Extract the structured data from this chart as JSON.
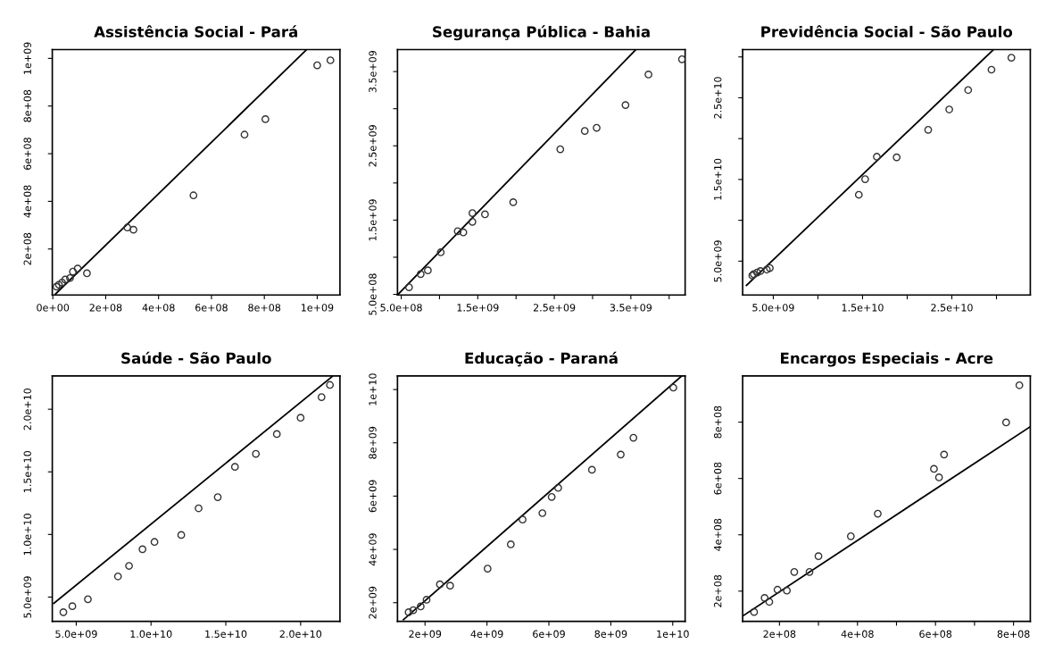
{
  "chart_data": [
    {
      "type": "scatter",
      "title": "Assistência Social - Pará",
      "xlim": [
        -2000000.0,
        1086000000.0
      ],
      "ylim": [
        7000000.0,
        1037000000.0
      ],
      "xticks": [
        {
          "value": 0,
          "label": "0e+00"
        },
        {
          "value": 200000000.0,
          "label": "2e+08"
        },
        {
          "value": 400000000.0,
          "label": "4e+08"
        },
        {
          "value": 600000000.0,
          "label": "6e+08"
        },
        {
          "value": 800000000.0,
          "label": "8e+08"
        },
        {
          "value": 1000000000.0,
          "label": "1e+09"
        }
      ],
      "yticks": [
        {
          "value": 200000000.0,
          "label": "2e+08"
        },
        {
          "value": 400000000.0,
          "label": "4e+08"
        },
        {
          "value": 600000000.0,
          "label": "6e+08"
        },
        {
          "value": 800000000.0,
          "label": "8e+08"
        },
        {
          "value": 1000000000.0,
          "label": "1e+09"
        }
      ],
      "series": [
        {
          "marker": "circle",
          "color": "#333333",
          "x": [
            1000000000.0,
            1050000000.0,
            804000000.0,
            725000000.0,
            532000000.0,
            305000000.0,
            282000000.0,
            129000000.0,
            94000000.0,
            76000000.0,
            65000000.0,
            47000000.0,
            35000000.0,
            23000000.0,
            14000000.0
          ],
          "values": [
            971000000.0,
            992000000.0,
            745000000.0,
            680000000.0,
            425000000.0,
            281000000.0,
            290000000.0,
            98000000.0,
            118000000.0,
            105000000.0,
            78000000.0,
            72000000.0,
            59000000.0,
            50000000.0,
            42000000.0
          ]
        },
        {
          "type": "line",
          "color": "#000000",
          "x": [
            10000000.0,
            960000000.0
          ],
          "values": [
            10800000.0,
            1037000000.0
          ]
        }
      ]
    },
    {
      "type": "scatter",
      "title": "Segurança Pública - Bahia",
      "xlim": [
        451000000.0,
        4209000000.0
      ],
      "ylim": [
        492000000.0,
        3796000000.0
      ],
      "xticks": [
        {
          "value": 500000000.0,
          "label": "5.0e+08"
        },
        {
          "value": 1000000000.0,
          "label": null
        },
        {
          "value": 1500000000.0,
          "label": "1.5e+09"
        },
        {
          "value": 2000000000.0,
          "label": null
        },
        {
          "value": 2500000000.0,
          "label": "2.5e+09"
        },
        {
          "value": 3000000000.0,
          "label": null
        },
        {
          "value": 3500000000.0,
          "label": "3.5e+09"
        },
        {
          "value": 4000000000.0,
          "label": null
        }
      ],
      "yticks": [
        {
          "value": 500000000.0,
          "label": "5.0e+08"
        },
        {
          "value": 1000000000.0,
          "label": null
        },
        {
          "value": 1500000000.0,
          "label": "1.5e+09"
        },
        {
          "value": 2000000000.0,
          "label": null
        },
        {
          "value": 2500000000.0,
          "label": "2.5e+09"
        },
        {
          "value": 3000000000.0,
          "label": null
        },
        {
          "value": 3500000000.0,
          "label": "3.5e+09"
        }
      ],
      "series": [
        {
          "marker": "circle",
          "color": "#333333",
          "x": [
            4168000000.0,
            3730000000.0,
            3430000000.0,
            3053000000.0,
            2898000000.0,
            2578000000.0,
            1963000000.0,
            1594000000.0,
            1430000000.0,
            1430000000.0,
            1311000000.0,
            1238000000.0,
            1016000000.0,
            848000000.0,
            754000000.0,
            602000000.0
          ],
          "values": [
            3666000000.0,
            3460000000.0,
            3049000000.0,
            2743000000.0,
            2701000000.0,
            2454000000.0,
            1741000000.0,
            1578000000.0,
            1594000000.0,
            1477000000.0,
            1334000000.0,
            1351000000.0,
            1066000000.0,
            823000000.0,
            773000000.0,
            596000000.0
          ]
        },
        {
          "type": "line",
          "color": "#000000",
          "x": [
            460000000.0,
            3560000000.0
          ],
          "values": [
            502000000.0,
            3790000000.0
          ]
        }
      ]
    },
    {
      "type": "scatter",
      "title": "Previdência Social - São Paulo",
      "xlim": [
        1570000000.0,
        33790000000.0
      ],
      "ylim": [
        860000000.0,
        30900000000.0
      ],
      "xticks": [
        {
          "value": 5000000000.0,
          "label": "5.0e+09"
        },
        {
          "value": 10000000000.0,
          "label": null
        },
        {
          "value": 15000000000.0,
          "label": "1.5e+10"
        },
        {
          "value": 20000000000.0,
          "label": null
        },
        {
          "value": 25000000000.0,
          "label": "2.5e+10"
        },
        {
          "value": 30000000000.0,
          "label": null
        }
      ],
      "yticks": [
        {
          "value": 5000000000.0,
          "label": "5.0e+09"
        },
        {
          "value": 10000000000.0,
          "label": null
        },
        {
          "value": 15000000000.0,
          "label": "1.5e+10"
        },
        {
          "value": 20000000000.0,
          "label": null
        },
        {
          "value": 25000000000.0,
          "label": "2.5e+10"
        },
        {
          "value": 30000000000.0,
          "label": null
        }
      ],
      "series": [
        {
          "marker": "circle",
          "color": "#333333",
          "x": [
            31670000000.0,
            29440000000.0,
            26830000000.0,
            24710000000.0,
            22350000000.0,
            18820000000.0,
            16600000000.0,
            15290000000.0,
            14580000000.0,
            4610000000.0,
            4280000000.0,
            3560000000.0,
            3200000000.0,
            2810000000.0,
            2650000000.0
          ],
          "values": [
            29910000000.0,
            28440000000.0,
            25950000000.0,
            23570000000.0,
            21080000000.0,
            17710000000.0,
            17780000000.0,
            15040000000.0,
            13130000000.0,
            4160000000.0,
            3970000000.0,
            3790000000.0,
            3610000000.0,
            3420000000.0,
            3240000000.0
          ]
        },
        {
          "type": "line",
          "color": "#000000",
          "x": [
            2000000000.0,
            29600000000.0
          ],
          "values": [
            2040000000.0,
            30830000000.0
          ]
        }
      ]
    },
    {
      "type": "scatter",
      "title": "Saúde - São Paulo",
      "xlim": [
        3400000000.0,
        22630000000.0
      ],
      "ylim": [
        3060000000.0,
        22660000000.0
      ],
      "xticks": [
        {
          "value": 5000000000.0,
          "label": "5.0e+09"
        },
        {
          "value": 10000000000.0,
          "label": "1.0e+10"
        },
        {
          "value": 15000000000.0,
          "label": "1.5e+10"
        },
        {
          "value": 20000000000.0,
          "label": "2.0e+10"
        }
      ],
      "yticks": [
        {
          "value": 5000000000.0,
          "label": "5.0e+09"
        },
        {
          "value": 10000000000.0,
          "label": "1.0e+10"
        },
        {
          "value": 15000000000.0,
          "label": "1.5e+10"
        },
        {
          "value": 20000000000.0,
          "label": "2.0e+10"
        }
      ],
      "series": [
        {
          "marker": "circle",
          "color": "#333333",
          "x": [
            4140000000.0,
            4740000000.0,
            5780000000.0,
            7790000000.0,
            8530000000.0,
            9430000000.0,
            10230000000.0,
            12020000000.0,
            13180000000.0,
            14460000000.0,
            15610000000.0,
            17010000000.0,
            18410000000.0,
            20000000000.0,
            21400000000.0,
            21960000000.0
          ],
          "values": [
            3790000000.0,
            4270000000.0,
            4830000000.0,
            6650000000.0,
            7490000000.0,
            8820000000.0,
            9400000000.0,
            9960000000.0,
            12090000000.0,
            12980000000.0,
            15400000000.0,
            16440000000.0,
            18020000000.0,
            19320000000.0,
            20970000000.0,
            21940000000.0
          ]
        },
        {
          "type": "line",
          "color": "#000000",
          "x": [
            3500000000.0,
            22100000000.0
          ],
          "values": [
            4500000000.0,
            22600000000.0
          ]
        }
      ]
    },
    {
      "type": "scatter",
      "title": "Educação - Paraná",
      "xlim": [
        1110000000.0,
        10400000000.0
      ],
      "ylim": [
        1300000000.0,
        10510000000.0
      ],
      "xticks": [
        {
          "value": 2000000000.0,
          "label": "2e+09"
        },
        {
          "value": 4000000000.0,
          "label": "4e+09"
        },
        {
          "value": 6000000000.0,
          "label": "6e+09"
        },
        {
          "value": 8000000000.0,
          "label": "8e+09"
        },
        {
          "value": 10000000000.0,
          "label": "1e+10"
        }
      ],
      "yticks": [
        {
          "value": 2000000000.0,
          "label": "2e+09"
        },
        {
          "value": 4000000000.0,
          "label": "4e+09"
        },
        {
          "value": 6000000000.0,
          "label": "6e+09"
        },
        {
          "value": 8000000000.0,
          "label": "8e+09"
        },
        {
          "value": 10000000000.0,
          "label": "1e+10"
        }
      ],
      "series": [
        {
          "marker": "circle",
          "color": "#333333",
          "x": [
            10020000000.0,
            8730000000.0,
            8320000000.0,
            7390000000.0,
            6300000000.0,
            6090000000.0,
            5790000000.0,
            5150000000.0,
            4770000000.0,
            4020000000.0,
            2810000000.0,
            2480000000.0,
            2050000000.0,
            1860000000.0,
            1620000000.0,
            1470000000.0
          ],
          "values": [
            10070000000.0,
            8190000000.0,
            7560000000.0,
            6990000000.0,
            6310000000.0,
            5970000000.0,
            5360000000.0,
            5120000000.0,
            4190000000.0,
            3280000000.0,
            2640000000.0,
            2690000000.0,
            2110000000.0,
            1860000000.0,
            1720000000.0,
            1640000000.0
          ]
        },
        {
          "type": "line",
          "color": "#000000",
          "x": [
            1300000000.0,
            10280000000.0
          ],
          "values": [
            1360000000.0,
            10500000000.0
          ]
        }
      ]
    },
    {
      "type": "scatter",
      "title": "Encargos Especiais - Acre",
      "xlim": [
        105700000.0,
        843000000.0
      ],
      "ylim": [
        92800000.0,
        964000000.0
      ],
      "xticks": [
        {
          "value": 200000000.0,
          "label": "2e+08"
        },
        {
          "value": 300000000.0,
          "label": null
        },
        {
          "value": 400000000.0,
          "label": "4e+08"
        },
        {
          "value": 500000000.0,
          "label": null
        },
        {
          "value": 600000000.0,
          "label": "6e+08"
        },
        {
          "value": 700000000.0,
          "label": null
        },
        {
          "value": 800000000.0,
          "label": "8e+08"
        }
      ],
      "yticks": [
        {
          "value": 200000000.0,
          "label": "2e+08"
        },
        {
          "value": 400000000.0,
          "label": "4e+08"
        },
        {
          "value": 600000000.0,
          "label": "6e+08"
        },
        {
          "value": 800000000.0,
          "label": "8e+08"
        }
      ],
      "series": [
        {
          "marker": "circle",
          "color": "#333333",
          "x": [
            815000000.0,
            781000000.0,
            622000000.0,
            596000000.0,
            609000000.0,
            452000000.0,
            383000000.0,
            300000000.0,
            277000000.0,
            238000000.0,
            219000000.0,
            195000000.0,
            174000000.0,
            162000000.0,
            135000000.0
          ],
          "values": [
            931000000.0,
            799000000.0,
            685000000.0,
            634000000.0,
            604000000.0,
            475000000.0,
            395000000.0,
            324000000.0,
            268000000.0,
            268000000.0,
            202000000.0,
            205000000.0,
            162000000.0,
            176000000.0,
            126000000.0
          ]
        },
        {
          "type": "line",
          "color": "#000000",
          "x": [
            106000000.0,
            843000000.0
          ],
          "values": [
            112000000.0,
            784000000.0
          ]
        }
      ]
    }
  ]
}
